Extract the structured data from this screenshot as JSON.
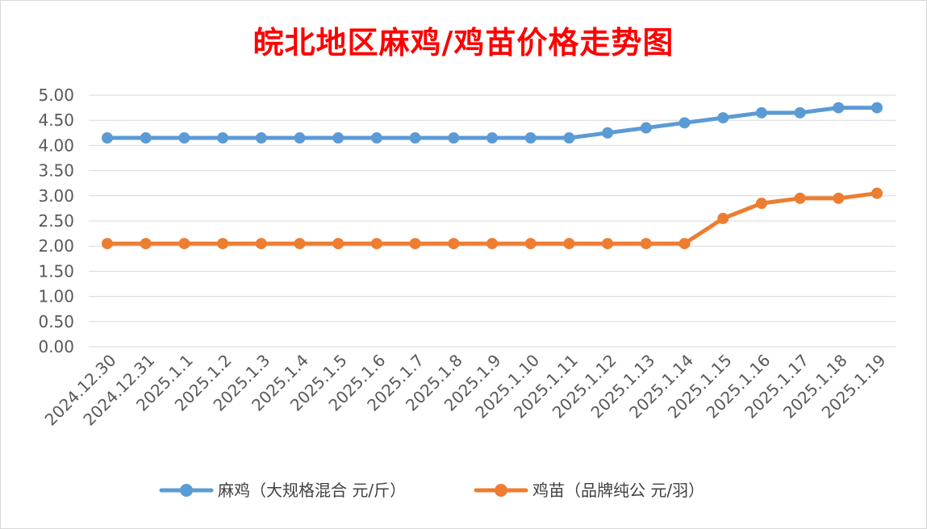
{
  "chart_data": {
    "type": "line",
    "title": "皖北地区麻鸡/鸡苗价格走势图",
    "xlabel": "",
    "ylabel": "",
    "ylim": [
      0,
      5
    ],
    "y_ticks": [
      "0.00",
      "0.50",
      "1.00",
      "1.50",
      "2.00",
      "2.50",
      "3.00",
      "3.50",
      "4.00",
      "4.50",
      "5.00"
    ],
    "grid": true,
    "legend_position": "bottom",
    "categories": [
      "2024.12.30",
      "2024.12.31",
      "2025.1.1",
      "2025.1.2",
      "2025.1.3",
      "2025.1.4",
      "2025.1.5",
      "2025.1.6",
      "2025.1.7",
      "2025.1.8",
      "2025.1.9",
      "2025.1.10",
      "2025.1.11",
      "2025.1.12",
      "2025.1.13",
      "2025.1.14",
      "2025.1.15",
      "2025.1.16",
      "2025.1.17",
      "2025.1.18",
      "2025.1.19"
    ],
    "series": [
      {
        "name": "麻鸡（大规格混合 元/斤）",
        "color": "#5b9bd5",
        "values": [
          4.15,
          4.15,
          4.15,
          4.15,
          4.15,
          4.15,
          4.15,
          4.15,
          4.15,
          4.15,
          4.15,
          4.15,
          4.15,
          4.25,
          4.35,
          4.45,
          4.55,
          4.65,
          4.65,
          4.75,
          4.75
        ]
      },
      {
        "name": "鸡苗（品牌纯公 元/羽）",
        "color": "#ed7d31",
        "values": [
          2.05,
          2.05,
          2.05,
          2.05,
          2.05,
          2.05,
          2.05,
          2.05,
          2.05,
          2.05,
          2.05,
          2.05,
          2.05,
          2.05,
          2.05,
          2.05,
          2.55,
          2.85,
          2.95,
          2.95,
          3.05
        ]
      }
    ]
  }
}
